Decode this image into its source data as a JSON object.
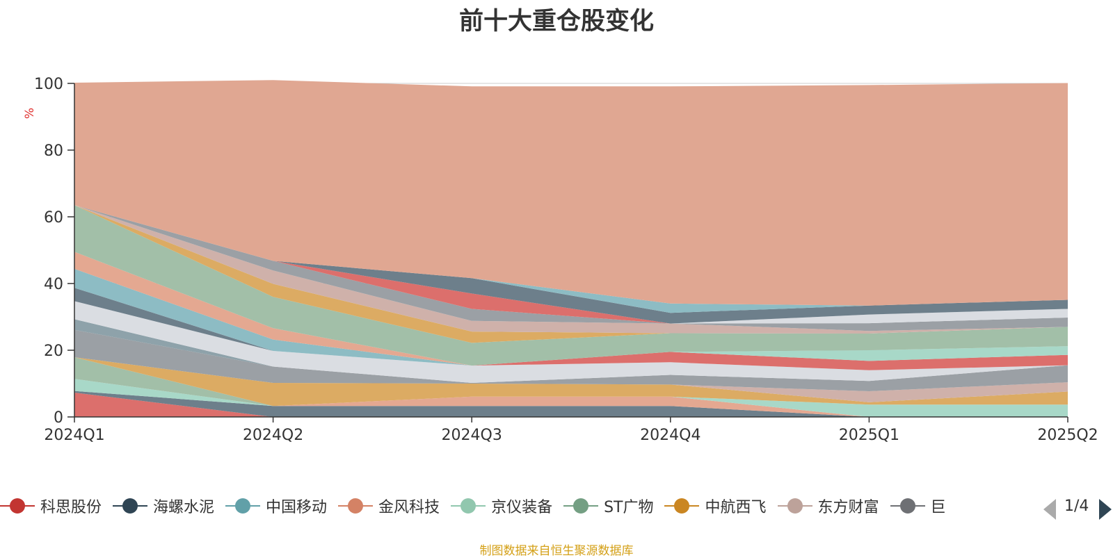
{
  "chart_data": {
    "type": "area",
    "title": "前十大重仓股变化",
    "ylabel": "%",
    "ylim": [
      0,
      100
    ],
    "yticks": [
      0,
      20,
      40,
      60,
      80,
      100
    ],
    "grid": true,
    "stacked": true,
    "categories": [
      "2024Q1",
      "2024Q2",
      "2024Q3",
      "2024Q4",
      "2025Q1",
      "2025Q2"
    ],
    "series": [
      {
        "name": "科思股份",
        "color": "#dc6f6c",
        "values": [
          7.3,
          0,
          0,
          0,
          0,
          0
        ]
      },
      {
        "name": "",
        "color": "#6d7f8b",
        "values": [
          0.5,
          3.3,
          3.3,
          3.3,
          0,
          0
        ]
      },
      {
        "name": "",
        "color": "#e4a891",
        "values": [
          0,
          0,
          2.8,
          2.8,
          0,
          0
        ]
      },
      {
        "name": "",
        "color": "#a8d8c8",
        "values": [
          3.6,
          0,
          0,
          0,
          3.7,
          3.7
        ]
      },
      {
        "name": "",
        "color": "#a2bfa8",
        "values": [
          6.5,
          0,
          0,
          0,
          0,
          0
        ]
      },
      {
        "name": "",
        "color": "#dcab63",
        "values": [
          0,
          6.9,
          3.9,
          3.6,
          0.7,
          3.9
        ]
      },
      {
        "name": "",
        "color": "#cfb1aa",
        "values": [
          0,
          0,
          0,
          0,
          3.3,
          2.8
        ]
      },
      {
        "name": "",
        "color": "#9ba0a5",
        "values": [
          8.2,
          4.9,
          0.2,
          2.9,
          3.1,
          5.1
        ]
      },
      {
        "name": "",
        "color": "#8ea2aa",
        "values": [
          3.2,
          0,
          0,
          0,
          0,
          0
        ]
      },
      {
        "name": "",
        "color": "#dadde2",
        "values": [
          5.4,
          4.7,
          5.2,
          3.8,
          3.2,
          0
        ]
      },
      {
        "name": "",
        "color": "#dc6f6c",
        "values": [
          0,
          0,
          0,
          3.1,
          2.8,
          3.1
        ]
      },
      {
        "name": "",
        "color": "#6d7f8b",
        "values": [
          4.0,
          0,
          0,
          0,
          0,
          0
        ]
      },
      {
        "name": "",
        "color": "#8dbcc4",
        "values": [
          5.7,
          3.4,
          0,
          0,
          0,
          0
        ]
      },
      {
        "name": "",
        "color": "#a8d8c8",
        "values": [
          0,
          0,
          0,
          0,
          3.2,
          2.6
        ]
      },
      {
        "name": "",
        "color": "#e4a891",
        "values": [
          5.1,
          3.4,
          0,
          0,
          0,
          0
        ]
      },
      {
        "name": "",
        "color": "#a2bfa8",
        "values": [
          14.0,
          9.4,
          6.8,
          5.6,
          5.0,
          5.8
        ]
      },
      {
        "name": "",
        "color": "#dcab63",
        "values": [
          0,
          3.9,
          3.4,
          0,
          0,
          0
        ]
      },
      {
        "name": "",
        "color": "#cfb1aa",
        "values": [
          0,
          4.0,
          3.2,
          2.9,
          0.8,
          0
        ]
      },
      {
        "name": "",
        "color": "#9ba0a5",
        "values": [
          0,
          2.9,
          3.6,
          0,
          2.3,
          2.8
        ]
      },
      {
        "name": "",
        "color": "#dadde2",
        "values": [
          0,
          0,
          0,
          0,
          2.6,
          2.6
        ]
      },
      {
        "name": "",
        "color": "#dc6f6c",
        "values": [
          0,
          0,
          4.6,
          0,
          0,
          0
        ]
      },
      {
        "name": "",
        "color": "#6d7f8b",
        "values": [
          0,
          0,
          4.6,
          3.2,
          2.7,
          2.7
        ]
      },
      {
        "name": "",
        "color": "#8dbcc4",
        "values": [
          0,
          0,
          0,
          2.8,
          0,
          0
        ]
      },
      {
        "name": "",
        "color": "#e0a792",
        "values": [
          36.7,
          54.2,
          57.5,
          65.1,
          66.1,
          65.0
        ]
      }
    ],
    "legend": {
      "position": "bottom",
      "items": [
        {
          "name": "科思股份",
          "color": "#c23531"
        },
        {
          "name": "海螺水泥",
          "color": "#2f4554"
        },
        {
          "name": "中国移动",
          "color": "#61a0a8"
        },
        {
          "name": "金风科技",
          "color": "#d48265"
        },
        {
          "name": "京仪装备",
          "color": "#91c7ae"
        },
        {
          "name": "ST广物",
          "color": "#749f83"
        },
        {
          "name": "中航西飞",
          "color": "#ca8622"
        },
        {
          "name": "东方财富",
          "color": "#bda29a"
        },
        {
          "name": "巨",
          "color": "#6e7074"
        }
      ],
      "page": "1/4"
    }
  },
  "footer": {
    "source": "制图数据来自恒生聚源数据库"
  }
}
